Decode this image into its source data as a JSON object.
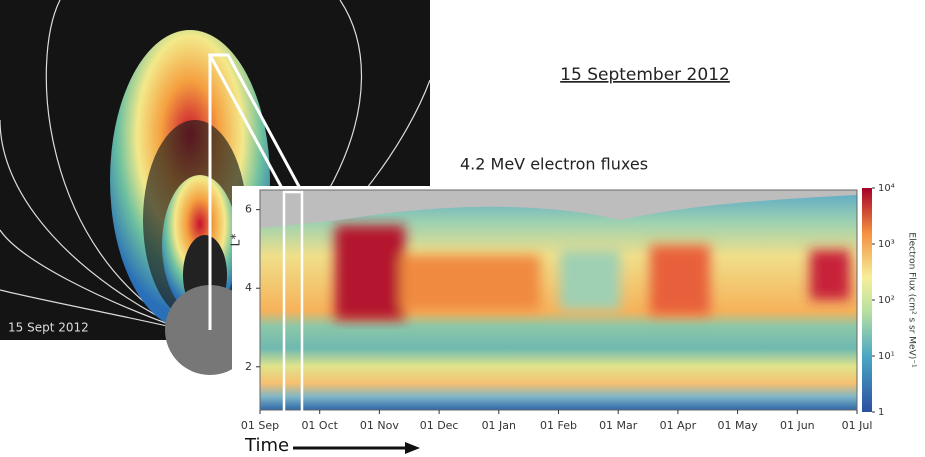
{
  "figure": {
    "title": "15 September 2012",
    "image_caption": "15 Sept 2012",
    "plot": {
      "title": "4.2 MeV electron fluxes",
      "ylabel": "L*",
      "ylim": [
        0.9,
        6.5
      ],
      "yticks": [
        2,
        4,
        6
      ],
      "x_labels": [
        "01 Sep",
        "01 Oct",
        "01 Nov",
        "01 Dec",
        "01 Jan",
        "01 Feb",
        "01 Mar",
        "01 Apr",
        "01 May",
        "01 Jun",
        "01 Jul"
      ],
      "xlabel": "Time",
      "colorbar": {
        "label": "Electron Flux (cm² s sr MeV)⁻¹",
        "log": true,
        "lim": [
          1,
          10000
        ],
        "ticks": [
          1,
          {
            "value": 10,
            "label": "10¹"
          },
          {
            "value": 100,
            "label": "10²"
          },
          {
            "value": 1000,
            "label": "10³"
          },
          {
            "value": 10000,
            "label": "10⁴"
          }
        ]
      }
    }
  }
}
